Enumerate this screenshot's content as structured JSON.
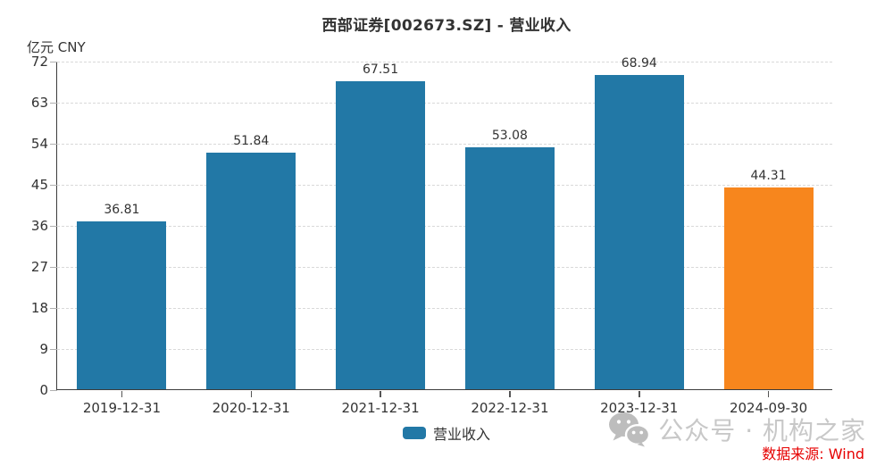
{
  "title": "西部证券[002673.SZ] - 营业收入",
  "unit_label": "亿元 CNY",
  "legend": {
    "label": "营业收入",
    "color": "#2278A6"
  },
  "footer": {
    "brand": "公众号 · 机构之家",
    "source": "数据来源: Wind",
    "icon": "wechat-icon"
  },
  "colors": {
    "bar_default": "#2278A6",
    "bar_highlight": "#F7861D",
    "grid": "#D9D9D9",
    "axis": "#3C3C3C",
    "text": "#333333",
    "brand_gray": "#C8C8C8",
    "source_red": "#E60000"
  },
  "chart_data": {
    "type": "bar",
    "title": "西部证券[002673.SZ] - 营业收入",
    "unit": "亿元 CNY",
    "categories": [
      "2019-12-31",
      "2020-12-31",
      "2021-12-31",
      "2022-12-31",
      "2023-12-31",
      "2024-09-30"
    ],
    "values": [
      36.81,
      51.84,
      67.51,
      53.08,
      68.94,
      44.31
    ],
    "value_labels": [
      "36.81",
      "51.84",
      "67.51",
      "53.08",
      "68.94",
      "44.31"
    ],
    "bar_colors": [
      "#2278A6",
      "#2278A6",
      "#2278A6",
      "#2278A6",
      "#2278A6",
      "#F7861D"
    ],
    "ylim": [
      0,
      72
    ],
    "yticks": [
      0,
      9,
      18,
      27,
      36,
      45,
      54,
      63,
      72
    ],
    "xlabel": "",
    "ylabel": "亿元 CNY",
    "grid": "horizontal-dashed",
    "legend_entries": [
      "营业收入"
    ],
    "legend_position": "bottom-center"
  }
}
